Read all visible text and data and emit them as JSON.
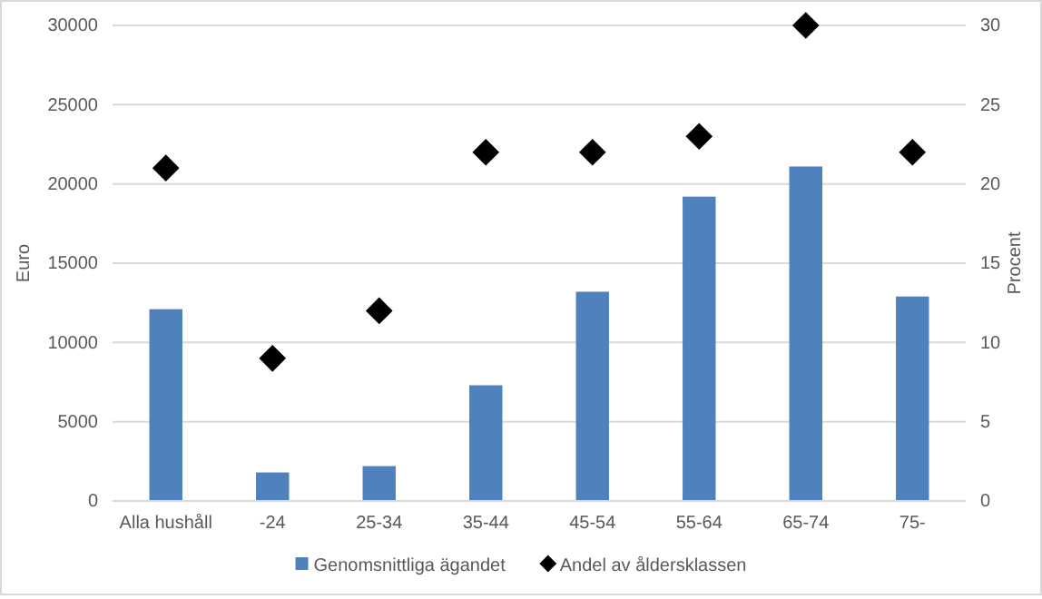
{
  "chart_data": {
    "type": "bar",
    "ylabel": "Euro",
    "y2label": "Procent",
    "categories": [
      "Alla hushåll",
      "-24",
      "25-34",
      "35-44",
      "45-54",
      "55-64",
      "65-74",
      "75-"
    ],
    "series": [
      {
        "name": "Genomsnittliga ägandet",
        "color": "#4f81bd",
        "values": [
          12100,
          1800,
          2200,
          7300,
          13200,
          19200,
          21100,
          12900
        ]
      },
      {
        "name": "Andel av åldersklassen",
        "type": "scatter",
        "axis": "y2",
        "marker": "diamond",
        "color": "#000000",
        "values": [
          21,
          9,
          12,
          22,
          22,
          23,
          30,
          22
        ]
      }
    ],
    "ylim": [
      0,
      30000
    ],
    "yticks": [
      0,
      5000,
      10000,
      15000,
      20000,
      25000,
      30000
    ],
    "y2lim": [
      0,
      30
    ],
    "y2ticks": [
      0,
      5,
      10,
      15,
      20,
      25,
      30
    ],
    "grid": "y",
    "legend": "bottom"
  }
}
